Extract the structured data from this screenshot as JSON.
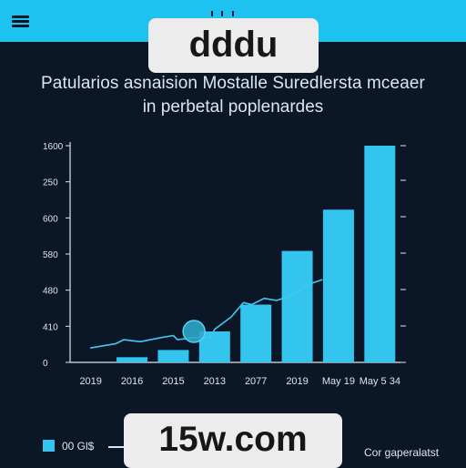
{
  "watermarks": {
    "top": "dddu",
    "bottom": "15w.com"
  },
  "header": {
    "title": "Patularios asnaision Mostalle Suredlersta mceaer",
    "subtitle": "in perbetal poplenardes"
  },
  "legend": {
    "bar_label": "00 Gl$",
    "note": "Cor gaperalatst"
  },
  "colors": {
    "background": "#0b1627",
    "header_bar": "#1ec2f1",
    "bars": "#34c5ef",
    "line": "#42c7ef",
    "marker": "#2ca7c8",
    "axis": "#dbe6f2"
  },
  "chart_data": {
    "type": "bar",
    "title": "Patularios asnaision Mostalle Suredlersta mceaer",
    "subtitle": "in perbetal poplenardes",
    "xlabel": "",
    "ylabel": "",
    "y_tick_labels": [
      "0",
      "410",
      "480",
      "580",
      "600",
      "250",
      "1600"
    ],
    "categories": [
      "2019",
      "2016",
      "2015",
      "2013",
      "2077",
      "2019",
      "May 19",
      "May 5 34"
    ],
    "bar_values": [
      0,
      0.25,
      0.6,
      1.5,
      2.8,
      5.4,
      7.4,
      10.5
    ],
    "line_points": [
      [
        0.0,
        0.7
      ],
      [
        0.6,
        0.9
      ],
      [
        0.8,
        1.1
      ],
      [
        1.2,
        1.0
      ],
      [
        1.7,
        1.2
      ],
      [
        2.0,
        1.3
      ],
      [
        2.1,
        1.1
      ],
      [
        2.5,
        1.2
      ],
      [
        2.9,
        1.2
      ],
      [
        3.0,
        1.6
      ],
      [
        3.4,
        2.2
      ],
      [
        3.7,
        2.9
      ],
      [
        3.9,
        2.8
      ],
      [
        4.2,
        3.1
      ],
      [
        4.5,
        3.0
      ],
      [
        4.8,
        3.2
      ],
      [
        5.3,
        3.8
      ],
      [
        5.6,
        4.0
      ]
    ],
    "marker_point": [
      2.5,
      1.5
    ],
    "y_tick_positions": [
      0,
      1,
      2,
      3,
      4,
      5,
      6
    ],
    "xlim": [
      -0.5,
      7.5
    ],
    "ylim": [
      0,
      10.5
    ],
    "grid": false,
    "legend": "bottom-left"
  }
}
